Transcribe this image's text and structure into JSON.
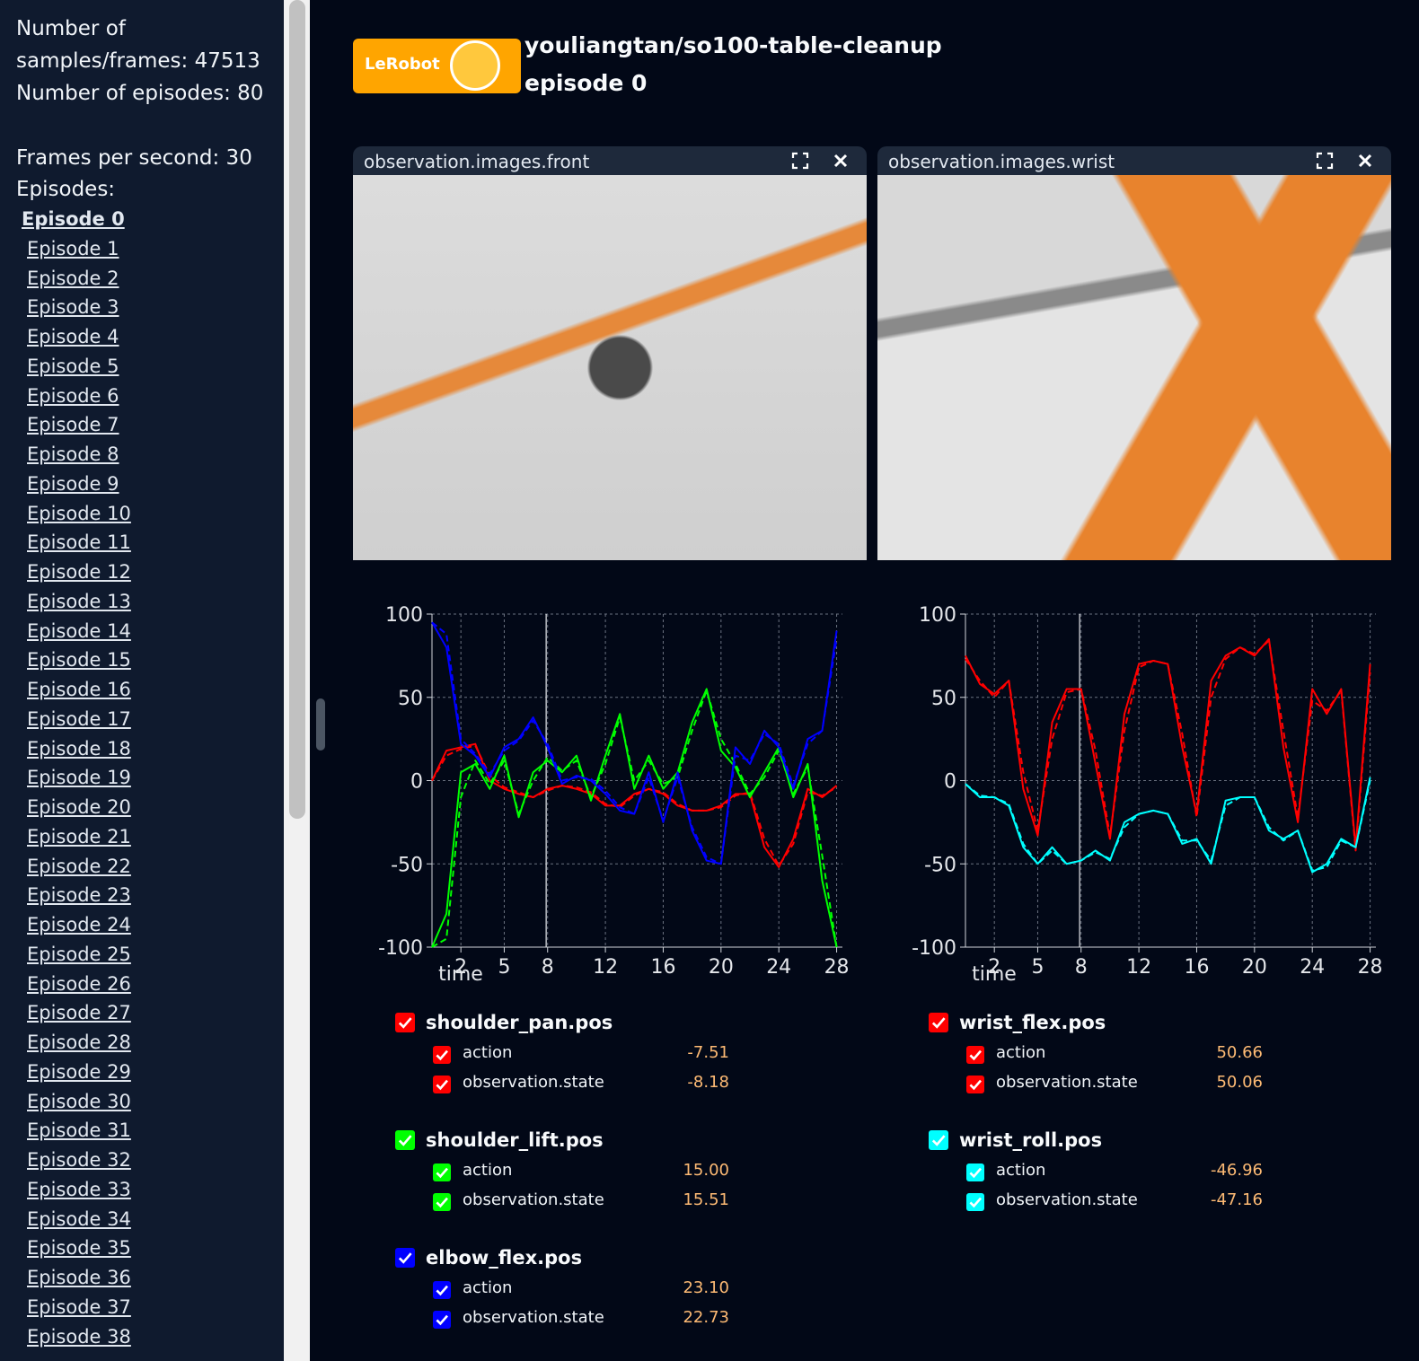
{
  "sidebar": {
    "stats": [
      "Number of samples/frames: 47513",
      "Number of episodes: 80",
      "Frames per second: 30"
    ],
    "episodes_heading": "Episodes:",
    "episodes": [
      "Episode 0",
      "Episode 1",
      "Episode 2",
      "Episode 3",
      "Episode 4",
      "Episode 5",
      "Episode 6",
      "Episode 7",
      "Episode 8",
      "Episode 9",
      "Episode 10",
      "Episode 11",
      "Episode 12",
      "Episode 13",
      "Episode 14",
      "Episode 15",
      "Episode 16",
      "Episode 17",
      "Episode 18",
      "Episode 19",
      "Episode 20",
      "Episode 21",
      "Episode 22",
      "Episode 23",
      "Episode 24",
      "Episode 25",
      "Episode 26",
      "Episode 27",
      "Episode 28",
      "Episode 29",
      "Episode 30",
      "Episode 31",
      "Episode 32",
      "Episode 33",
      "Episode 34",
      "Episode 35",
      "Episode 36",
      "Episode 37",
      "Episode 38"
    ]
  },
  "header": {
    "logo": "LeRobot",
    "repo": "youliangtan/so100-table-cleanup",
    "episode": "episode 0"
  },
  "videos": [
    {
      "title": "observation.images.front"
    },
    {
      "title": "observation.images.wrist"
    }
  ],
  "chart_data": [
    {
      "type": "line",
      "x_label": "time",
      "grid": true,
      "cursor_x": 7.9,
      "x": [
        0,
        1,
        2,
        3,
        4,
        5,
        6,
        7,
        8,
        9,
        10,
        11,
        12,
        13,
        14,
        15,
        16,
        17,
        18,
        19,
        20,
        21,
        22,
        23,
        24,
        25,
        26,
        27,
        28
      ],
      "xlim": [
        0,
        28.4
      ],
      "ylim": [
        -100,
        100
      ],
      "xticks": [
        2,
        5,
        8,
        12,
        16,
        20,
        24,
        28
      ],
      "yticks": [
        -100,
        -50,
        0,
        50,
        100
      ],
      "groups": [
        {
          "name": "shoulder_pan.pos",
          "color": "#ff0000",
          "series": [
            {
              "name": "action",
              "dashed": false,
              "value_label": "-7.51",
              "values": [
                0,
                18,
                20,
                22,
                0,
                -5,
                -8,
                -10,
                -5,
                -3,
                -5,
                -8,
                -15,
                -15,
                -8,
                -5,
                -8,
                -15,
                -18,
                -18,
                -15,
                -8,
                -8,
                -40,
                -52,
                -35,
                -5,
                -10,
                -3
              ]
            },
            {
              "name": "observation.state",
              "dashed": true,
              "value_label": "-8.18",
              "values": [
                0,
                15,
                19,
                21,
                3,
                -4,
                -7,
                -10,
                -6,
                -3,
                -4,
                -7,
                -14,
                -16,
                -9,
                -5,
                -7,
                -14,
                -18,
                -18,
                -16,
                -9,
                -7,
                -35,
                -51,
                -38,
                -7,
                -9,
                -4
              ]
            }
          ]
        },
        {
          "name": "shoulder_lift.pos",
          "color": "#00ff00",
          "series": [
            {
              "name": "action",
              "dashed": false,
              "value_label": "15.00",
              "values": [
                -100,
                -80,
                5,
                10,
                -5,
                15,
                -22,
                5,
                12,
                5,
                15,
                -12,
                15,
                40,
                -5,
                15,
                -5,
                5,
                35,
                55,
                18,
                8,
                -10,
                5,
                20,
                -10,
                10,
                -60,
                -100
              ]
            },
            {
              "name": "observation.state",
              "dashed": true,
              "value_label": "15.51",
              "values": [
                -100,
                -95,
                -10,
                12,
                -2,
                12,
                -20,
                0,
                14,
                6,
                12,
                -10,
                10,
                38,
                0,
                12,
                -2,
                2,
                30,
                54,
                25,
                10,
                -8,
                2,
                18,
                -8,
                8,
                -45,
                -100
              ]
            }
          ]
        },
        {
          "name": "elbow_flex.pos",
          "color": "#0000ff",
          "series": [
            {
              "name": "action",
              "dashed": false,
              "value_label": "23.10",
              "values": [
                95,
                80,
                22,
                15,
                2,
                20,
                25,
                38,
                20,
                -2,
                3,
                0,
                -8,
                -18,
                -20,
                5,
                -25,
                5,
                -30,
                -48,
                -50,
                20,
                10,
                30,
                20,
                -5,
                25,
                30,
                90
              ]
            },
            {
              "name": "observation.state",
              "dashed": true,
              "value_label": "22.73",
              "values": [
                95,
                88,
                25,
                16,
                4,
                18,
                24,
                36,
                22,
                0,
                2,
                1,
                -6,
                -16,
                -20,
                2,
                -24,
                2,
                -28,
                -46,
                -50,
                15,
                12,
                28,
                22,
                -3,
                22,
                30,
                85
              ]
            }
          ]
        }
      ]
    },
    {
      "type": "line",
      "x_label": "time",
      "grid": true,
      "cursor_x": 7.9,
      "x": [
        0,
        1,
        2,
        3,
        4,
        5,
        6,
        7,
        8,
        9,
        10,
        11,
        12,
        13,
        14,
        15,
        16,
        17,
        18,
        19,
        20,
        21,
        22,
        23,
        24,
        25,
        26,
        27,
        28
      ],
      "xlim": [
        0,
        28.4
      ],
      "ylim": [
        -100,
        100
      ],
      "xticks": [
        2,
        5,
        8,
        12,
        16,
        20,
        24,
        28
      ],
      "yticks": [
        -100,
        -50,
        0,
        50,
        100
      ],
      "groups": [
        {
          "name": "wrist_flex.pos",
          "color": "#ff0000",
          "series": [
            {
              "name": "action",
              "dashed": false,
              "value_label": "50.66",
              "values": [
                75,
                58,
                52,
                60,
                -5,
                -33,
                35,
                55,
                55,
                10,
                -35,
                40,
                70,
                72,
                70,
                20,
                -20,
                60,
                75,
                80,
                75,
                85,
                20,
                -25,
                55,
                40,
                55,
                -40,
                70
              ]
            },
            {
              "name": "observation.state",
              "dashed": true,
              "value_label": "50.06",
              "values": [
                73,
                60,
                50,
                60,
                5,
                -30,
                25,
                53,
                55,
                18,
                -33,
                30,
                68,
                72,
                70,
                28,
                -22,
                50,
                73,
                80,
                76,
                84,
                30,
                -22,
                48,
                42,
                54,
                -42,
                65
              ]
            }
          ]
        },
        {
          "name": "wrist_roll.pos",
          "color": "#00ffff",
          "series": [
            {
              "name": "action",
              "dashed": false,
              "value_label": "-46.96",
              "values": [
                -2,
                -10,
                -10,
                -15,
                -40,
                -50,
                -40,
                -50,
                -48,
                -42,
                -48,
                -25,
                -20,
                -18,
                -20,
                -38,
                -35,
                -50,
                -12,
                -10,
                -10,
                -30,
                -35,
                -30,
                -55,
                -50,
                -35,
                -40,
                2
              ]
            },
            {
              "name": "observation.state",
              "dashed": true,
              "value_label": "-47.16",
              "values": [
                -2,
                -9,
                -10,
                -14,
                -38,
                -50,
                -42,
                -50,
                -48,
                -43,
                -47,
                -28,
                -20,
                -18,
                -20,
                -36,
                -36,
                -48,
                -15,
                -10,
                -10,
                -28,
                -36,
                -30,
                -54,
                -52,
                -36,
                -40,
                0
              ]
            }
          ]
        }
      ]
    }
  ]
}
